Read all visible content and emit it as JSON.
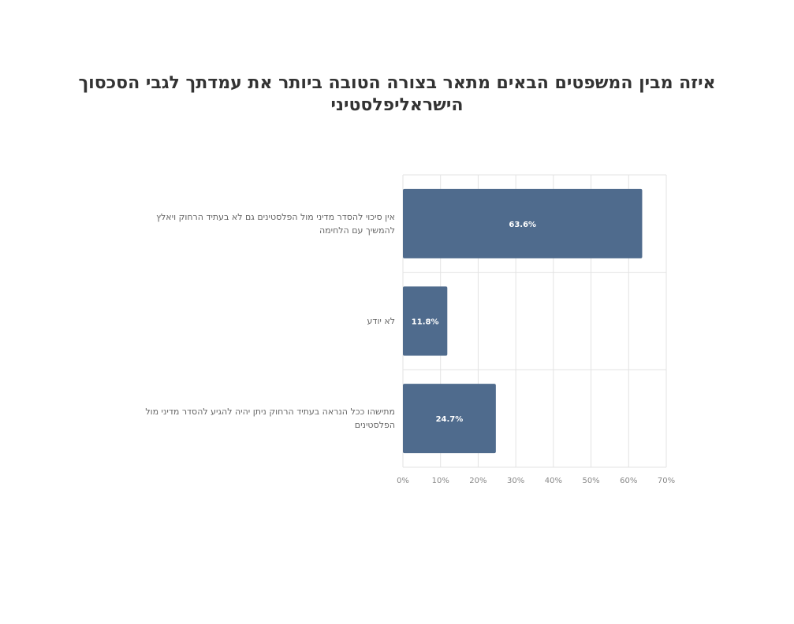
{
  "chart_data": {
    "type": "bar",
    "orientation": "horizontal",
    "title": "איזה מבין המשפטים הבאים מתאר בצורה הטובה ביותר את עמדתך לגבי הסכסוך הישראליפלסטיני",
    "categories": [
      "אין סיכוי להסדר מדיני מול הפלסטינים גם לא בעתיד הרחוק ויאלץ להמשיך עם הלחימה",
      "לא יודע",
      "מתישהו ככל הנראה בעתיד הרחוק ניתן יהיה להגיע להסדר מדיני מול הפלסטינים"
    ],
    "values": [
      63.6,
      11.8,
      24.7
    ],
    "data_labels": [
      "63.6%",
      "11.8%",
      "24.7%"
    ],
    "xlim": [
      0,
      70
    ],
    "xticks": [
      0,
      10,
      20,
      30,
      40,
      50,
      60,
      70
    ],
    "xtick_labels": [
      "0%",
      "10%",
      "20%",
      "30%",
      "40%",
      "50%",
      "60%",
      "70%"
    ],
    "grid": true,
    "legend": "none",
    "colors": {
      "bar": "#4f6b8d",
      "grid": "#e3e3e3",
      "tick_text": "#888888",
      "data_label_text": "#ffffff",
      "title_text": "#333333"
    }
  }
}
